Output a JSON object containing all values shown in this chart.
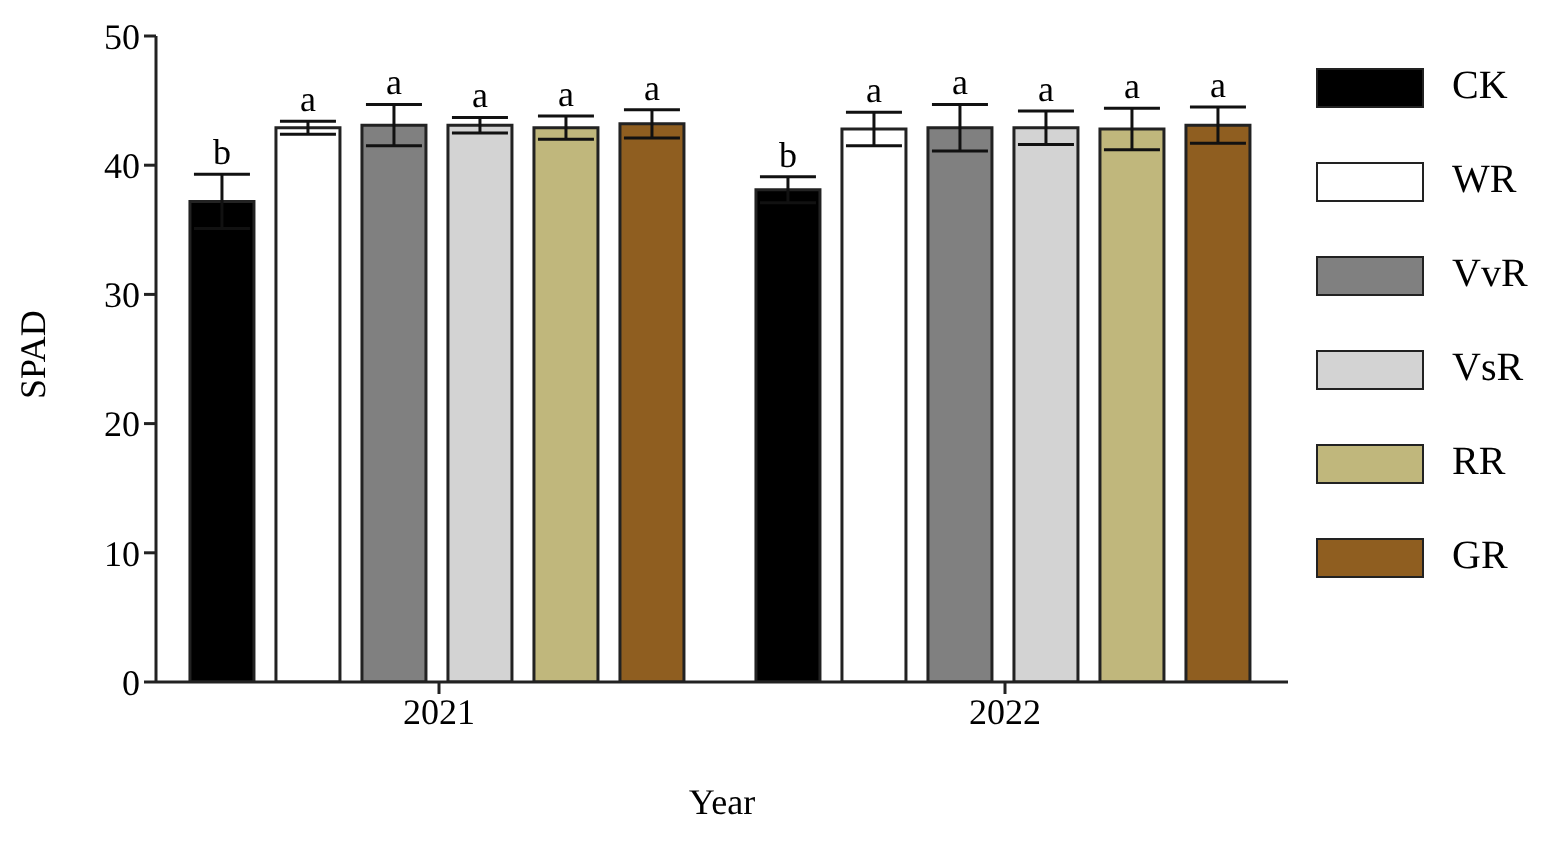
{
  "chart_data": {
    "type": "bar",
    "xlabel": "Year",
    "ylabel": "SPAD",
    "categories": [
      "2021",
      "2022"
    ],
    "series": [
      {
        "name": "CK",
        "color": "#000000",
        "values": [
          37.2,
          38.1
        ],
        "errors": [
          2.1,
          1.0
        ],
        "value_labels": [
          "b",
          "b"
        ]
      },
      {
        "name": "WR",
        "color": "#ffffff",
        "values": [
          42.9,
          42.8
        ],
        "errors": [
          0.5,
          1.3
        ],
        "value_labels": [
          "a",
          "a"
        ]
      },
      {
        "name": "VvR",
        "color": "#808080",
        "values": [
          43.1,
          42.9
        ],
        "errors": [
          1.6,
          1.8
        ],
        "value_labels": [
          "a",
          "a"
        ]
      },
      {
        "name": "VsR",
        "color": "#d3d3d3",
        "values": [
          43.1,
          42.9
        ],
        "errors": [
          0.6,
          1.3
        ],
        "value_labels": [
          "a",
          "a"
        ]
      },
      {
        "name": "RR",
        "color": "#c0b77c",
        "values": [
          42.9,
          42.8
        ],
        "errors": [
          0.9,
          1.6
        ],
        "value_labels": [
          "a",
          "a"
        ]
      },
      {
        "name": "GR",
        "color": "#8f5e20",
        "values": [
          43.2,
          43.1
        ],
        "errors": [
          1.1,
          1.4
        ],
        "value_labels": [
          "a",
          "a"
        ]
      }
    ],
    "ylim": [
      0,
      50
    ],
    "yticks": [
      0,
      10,
      20,
      30,
      40,
      50
    ],
    "grid": false,
    "legend": "right"
  }
}
